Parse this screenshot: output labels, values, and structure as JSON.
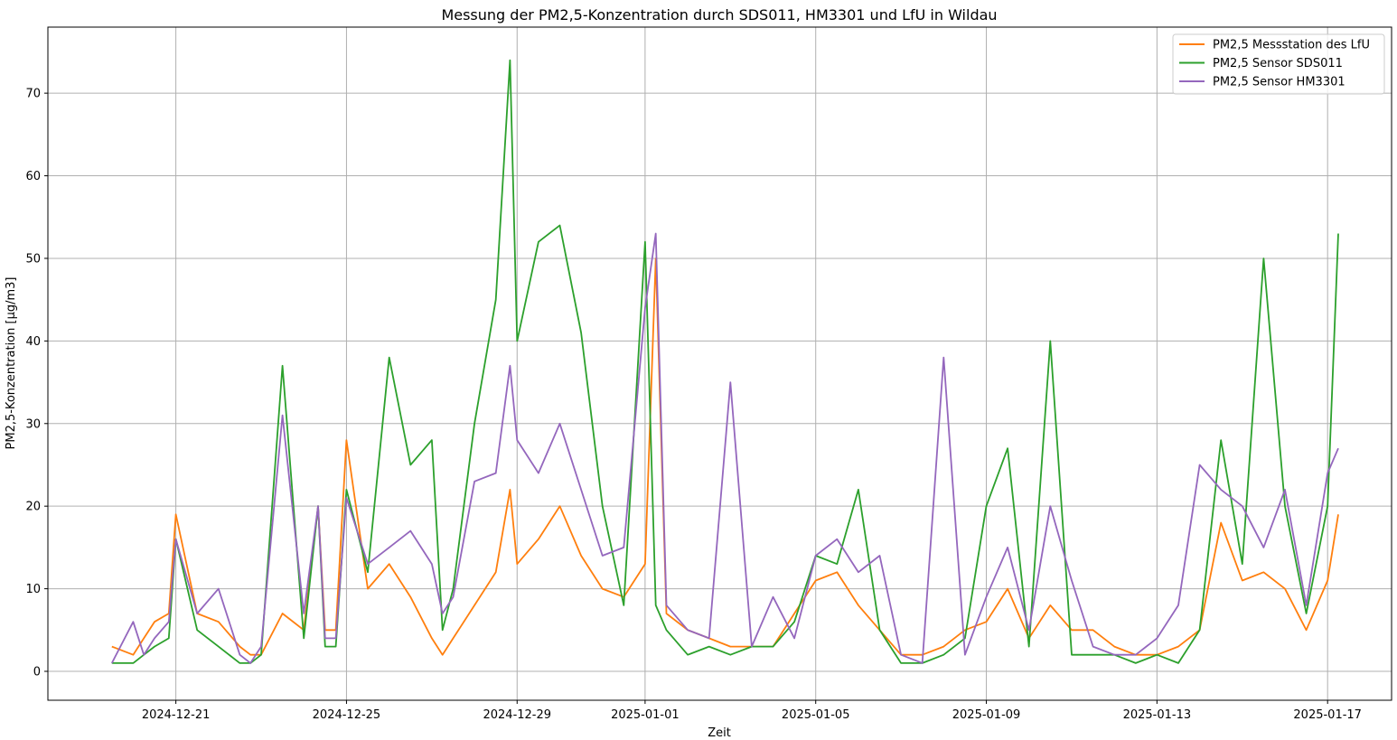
{
  "chart_data": {
    "type": "line",
    "title": "Messung der PM2,5-Konzentration durch SDS011, HM3301 und LfU in Wildau",
    "xlabel": "Zeit",
    "ylabel": "PM2,5-Konzentration [µg/m3]",
    "x_start": "2024-12-19T12:00",
    "x_range": [
      "2024-12-18T00:00",
      "2025-01-18T12:00"
    ],
    "xticks": [
      "2024-12-21",
      "2024-12-25",
      "2024-12-29",
      "2025-01-01",
      "2025-01-05",
      "2025-01-09",
      "2025-01-13",
      "2025-01-17"
    ],
    "ylim": [
      -3.5,
      78
    ],
    "yticks": [
      0,
      10,
      20,
      30,
      40,
      50,
      60,
      70
    ],
    "grid": true,
    "legend_position": "top-right",
    "series": [
      {
        "name": "PM2,5 Messstation des LfU",
        "color": "#ff7f0e",
        "x": [
          "2024-12-19T12:00",
          "2024-12-20T00:00",
          "2024-12-20T06:00",
          "2024-12-20T12:00",
          "2024-12-20T20:00",
          "2024-12-21T00:00",
          "2024-12-21T12:00",
          "2024-12-22T00:00",
          "2024-12-22T12:00",
          "2024-12-22T18:00",
          "2024-12-23T00:00",
          "2024-12-23T12:00",
          "2024-12-24T00:00",
          "2024-12-24T08:00",
          "2024-12-24T12:00",
          "2024-12-24T18:00",
          "2024-12-25T00:00",
          "2024-12-25T12:00",
          "2024-12-26T00:00",
          "2024-12-26T12:00",
          "2024-12-27T00:00",
          "2024-12-27T06:00",
          "2024-12-27T12:00",
          "2024-12-28T00:00",
          "2024-12-28T12:00",
          "2024-12-28T20:00",
          "2024-12-29T00:00",
          "2024-12-29T12:00",
          "2024-12-30T00:00",
          "2024-12-30T12:00",
          "2024-12-31T00:00",
          "2024-12-31T12:00",
          "2025-01-01T00:00",
          "2025-01-01T06:00",
          "2025-01-01T12:00",
          "2025-01-02T00:00",
          "2025-01-02T12:00",
          "2025-01-03T00:00",
          "2025-01-03T12:00",
          "2025-01-04T00:00",
          "2025-01-04T12:00",
          "2025-01-05T00:00",
          "2025-01-05T12:00",
          "2025-01-06T00:00",
          "2025-01-06T12:00",
          "2025-01-07T00:00",
          "2025-01-07T12:00",
          "2025-01-08T00:00",
          "2025-01-08T12:00",
          "2025-01-09T00:00",
          "2025-01-09T12:00",
          "2025-01-10T00:00",
          "2025-01-10T12:00",
          "2025-01-11T00:00",
          "2025-01-11T12:00",
          "2025-01-12T00:00",
          "2025-01-12T12:00",
          "2025-01-13T00:00",
          "2025-01-13T12:00",
          "2025-01-14T00:00",
          "2025-01-14T12:00",
          "2025-01-15T00:00",
          "2025-01-15T12:00",
          "2025-01-16T00:00",
          "2025-01-16T12:00",
          "2025-01-17T00:00",
          "2025-01-17T06:00"
        ],
        "values": [
          3,
          2,
          4,
          6,
          7,
          19,
          7,
          6,
          3,
          2,
          2,
          7,
          5,
          20,
          5,
          5,
          28,
          10,
          13,
          9,
          4,
          2,
          4,
          8,
          12,
          22,
          13,
          16,
          20,
          14,
          10,
          9,
          13,
          50,
          7,
          5,
          4,
          3,
          3,
          3,
          7,
          11,
          12,
          8,
          5,
          2,
          2,
          3,
          5,
          6,
          10,
          4,
          8,
          5,
          5,
          3,
          2,
          2,
          3,
          5,
          18,
          11,
          12,
          10,
          5,
          11,
          19
        ]
      },
      {
        "name": "PM2,5 Sensor SDS011",
        "color": "#2ca02c",
        "x": [
          "2024-12-19T12:00",
          "2024-12-20T00:00",
          "2024-12-20T06:00",
          "2024-12-20T12:00",
          "2024-12-20T20:00",
          "2024-12-21T00:00",
          "2024-12-21T12:00",
          "2024-12-22T00:00",
          "2024-12-22T12:00",
          "2024-12-22T18:00",
          "2024-12-23T00:00",
          "2024-12-23T12:00",
          "2024-12-24T00:00",
          "2024-12-24T08:00",
          "2024-12-24T12:00",
          "2024-12-24T18:00",
          "2024-12-25T00:00",
          "2024-12-25T12:00",
          "2024-12-26T00:00",
          "2024-12-26T12:00",
          "2024-12-27T00:00",
          "2024-12-27T06:00",
          "2024-12-27T12:00",
          "2024-12-28T00:00",
          "2024-12-28T12:00",
          "2024-12-28T20:00",
          "2024-12-29T00:00",
          "2024-12-29T12:00",
          "2024-12-30T00:00",
          "2024-12-30T12:00",
          "2024-12-31T00:00",
          "2024-12-31T12:00",
          "2025-01-01T00:00",
          "2025-01-01T06:00",
          "2025-01-01T12:00",
          "2025-01-02T00:00",
          "2025-01-02T12:00",
          "2025-01-03T00:00",
          "2025-01-03T12:00",
          "2025-01-04T00:00",
          "2025-01-04T12:00",
          "2025-01-05T00:00",
          "2025-01-05T12:00",
          "2025-01-06T00:00",
          "2025-01-06T12:00",
          "2025-01-07T00:00",
          "2025-01-07T12:00",
          "2025-01-08T00:00",
          "2025-01-08T12:00",
          "2025-01-09T00:00",
          "2025-01-09T12:00",
          "2025-01-10T00:00",
          "2025-01-10T12:00",
          "2025-01-11T00:00",
          "2025-01-11T12:00",
          "2025-01-12T00:00",
          "2025-01-12T12:00",
          "2025-01-13T00:00",
          "2025-01-13T12:00",
          "2025-01-14T00:00",
          "2025-01-14T12:00",
          "2025-01-15T00:00",
          "2025-01-15T12:00",
          "2025-01-16T00:00",
          "2025-01-16T12:00",
          "2025-01-17T00:00",
          "2025-01-17T06:00"
        ],
        "values": [
          1,
          1,
          2,
          3,
          4,
          16,
          5,
          3,
          1,
          1,
          2,
          37,
          4,
          20,
          3,
          3,
          22,
          12,
          38,
          25,
          28,
          5,
          10,
          30,
          45,
          74,
          40,
          52,
          54,
          41,
          20,
          8,
          52,
          8,
          5,
          2,
          3,
          2,
          3,
          3,
          6,
          14,
          13,
          22,
          5,
          1,
          1,
          2,
          4,
          20,
          27,
          3,
          40,
          2,
          2,
          2,
          1,
          2,
          1,
          5,
          28,
          13,
          50,
          20,
          7,
          20,
          53
        ]
      },
      {
        "name": "PM2,5 Sensor HM3301",
        "color": "#9467bd",
        "x": [
          "2024-12-19T12:00",
          "2024-12-20T00:00",
          "2024-12-20T06:00",
          "2024-12-20T12:00",
          "2024-12-20T20:00",
          "2024-12-21T00:00",
          "2024-12-21T12:00",
          "2024-12-22T00:00",
          "2024-12-22T12:00",
          "2024-12-22T18:00",
          "2024-12-23T00:00",
          "2024-12-23T12:00",
          "2024-12-24T00:00",
          "2024-12-24T08:00",
          "2024-12-24T12:00",
          "2024-12-24T18:00",
          "2024-12-25T00:00",
          "2024-12-25T12:00",
          "2024-12-26T00:00",
          "2024-12-26T12:00",
          "2024-12-27T00:00",
          "2024-12-27T06:00",
          "2024-12-27T12:00",
          "2024-12-28T00:00",
          "2024-12-28T12:00",
          "2024-12-28T20:00",
          "2024-12-29T00:00",
          "2024-12-29T12:00",
          "2024-12-30T00:00",
          "2024-12-30T12:00",
          "2024-12-31T00:00",
          "2024-12-31T12:00",
          "2025-01-01T00:00",
          "2025-01-01T06:00",
          "2025-01-01T12:00",
          "2025-01-02T00:00",
          "2025-01-02T12:00",
          "2025-01-03T00:00",
          "2025-01-03T12:00",
          "2025-01-04T00:00",
          "2025-01-04T12:00",
          "2025-01-05T00:00",
          "2025-01-05T12:00",
          "2025-01-06T00:00",
          "2025-01-06T12:00",
          "2025-01-07T00:00",
          "2025-01-07T12:00",
          "2025-01-08T00:00",
          "2025-01-08T12:00",
          "2025-01-09T00:00",
          "2025-01-09T12:00",
          "2025-01-10T00:00",
          "2025-01-10T12:00",
          "2025-01-11T00:00",
          "2025-01-11T12:00",
          "2025-01-12T00:00",
          "2025-01-12T12:00",
          "2025-01-13T00:00",
          "2025-01-13T12:00",
          "2025-01-14T00:00",
          "2025-01-14T12:00",
          "2025-01-15T00:00",
          "2025-01-15T12:00",
          "2025-01-16T00:00",
          "2025-01-16T12:00",
          "2025-01-17T00:00",
          "2025-01-17T06:00"
        ],
        "values": [
          1,
          6,
          2,
          4,
          6,
          16,
          7,
          10,
          2,
          1,
          3,
          31,
          7,
          20,
          4,
          4,
          21,
          13,
          15,
          17,
          13,
          7,
          9,
          23,
          24,
          37,
          28,
          24,
          30,
          22,
          14,
          15,
          44,
          53,
          8,
          5,
          4,
          35,
          3,
          9,
          4,
          14,
          16,
          12,
          14,
          2,
          1,
          38,
          2,
          9,
          15,
          5,
          20,
          11,
          3,
          2,
          2,
          4,
          8,
          25,
          22,
          20,
          15,
          22,
          8,
          24,
          27
        ]
      }
    ]
  }
}
